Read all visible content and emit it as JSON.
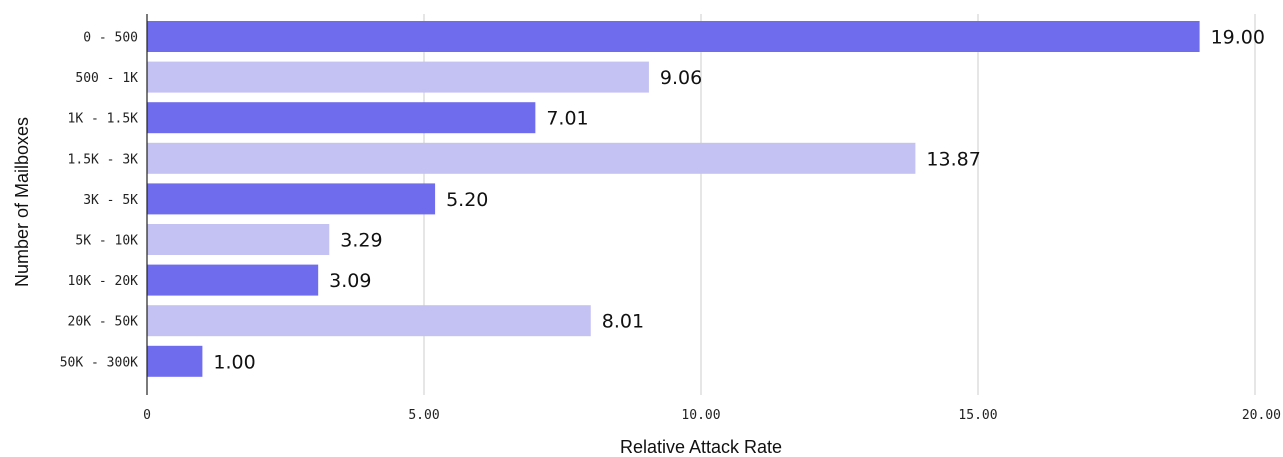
{
  "chart_data": {
    "type": "bar",
    "orientation": "horizontal",
    "xlabel": "Relative Attack Rate",
    "ylabel": "Number of Mailboxes",
    "categories": [
      "0 - 500",
      "500 - 1K",
      "1K - 1.5K",
      "1.5K - 3K",
      "3K - 5K",
      "5K - 10K",
      "10K - 20K",
      "20K - 50K",
      "50K - 300K"
    ],
    "values": [
      19.0,
      9.06,
      7.01,
      13.87,
      5.2,
      3.29,
      3.09,
      8.01,
      1.0
    ],
    "value_labels": [
      "19.00",
      "9.06",
      "7.01",
      "13.87",
      "5.20",
      "3.29",
      "3.09",
      "8.01",
      "1.00"
    ],
    "xlim": [
      0,
      20
    ],
    "xticks": [
      0,
      5,
      10,
      15,
      20
    ],
    "xtick_labels": [
      "0",
      "5.00",
      "10.00",
      "15.00",
      "20.00"
    ],
    "grid": "vertical",
    "colors": {
      "dark": "#6f6ded",
      "light": "#c4c2f2",
      "grid": "#cccccc",
      "axis": "#222222"
    },
    "bar_colors": [
      "dark",
      "light",
      "dark",
      "light",
      "dark",
      "light",
      "dark",
      "light",
      "dark"
    ]
  }
}
